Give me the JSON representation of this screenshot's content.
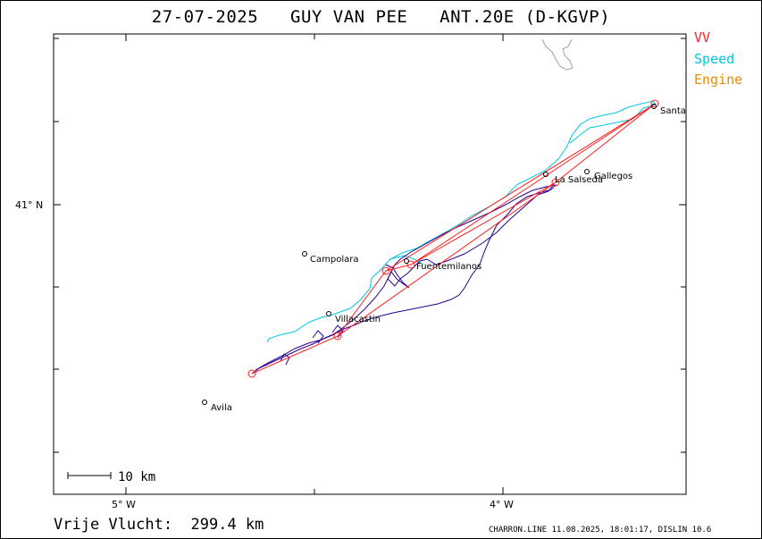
{
  "title": "27-07-2025   GUY VAN PEE   ANT.20E (D-KGVP)",
  "legend": {
    "vv": "VV",
    "speed": "Speed",
    "engine": "Engine"
  },
  "colors": {
    "vv": "#ff2020",
    "speed": "#00c8e6",
    "engine": "#e68a00",
    "track": "#2a0090",
    "coast": "#a0a0a0"
  },
  "axes": {
    "lat_label": "41° N",
    "lon_labels": [
      "5° W",
      "4° W"
    ]
  },
  "places": [
    {
      "name": "Santa",
      "kind": "town"
    },
    {
      "name": "Gallegos",
      "kind": "town"
    },
    {
      "name": "La Salseda",
      "kind": "town"
    },
    {
      "name": "Campolara",
      "kind": "town"
    },
    {
      "name": "Fuentemilanos",
      "kind": "town"
    },
    {
      "name": "Villacastin",
      "kind": "town"
    },
    {
      "name": "Avila",
      "kind": "town"
    }
  ],
  "scale": {
    "label": "10 km"
  },
  "footer": {
    "distance": "Vrije Vlucht:  299.4 km",
    "credit": "CHARRON.LINE 11.08.2025, 18:01:17, DISLIN 10.6"
  }
}
